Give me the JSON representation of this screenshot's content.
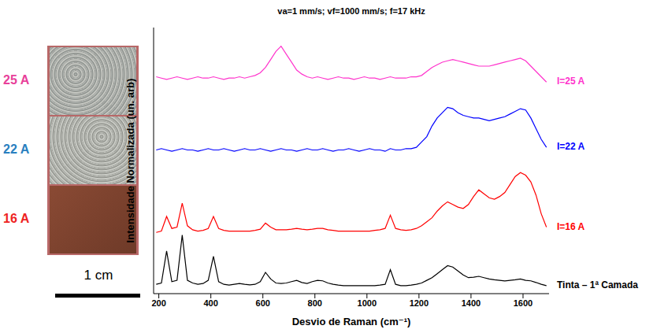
{
  "chart_data": {
    "type": "line",
    "title": "va=1 mm/s; vf=1000 mm/s; f=17 kHz",
    "x_label": "Desvio de Raman (cm⁻¹)",
    "y_label": "Intensidade Normalizada (un. arb)",
    "x": [
      190,
      210,
      230,
      250,
      270,
      290,
      310,
      330,
      350,
      370,
      390,
      410,
      430,
      450,
      470,
      490,
      510,
      530,
      550,
      570,
      590,
      610,
      630,
      650,
      670,
      690,
      710,
      730,
      750,
      770,
      790,
      810,
      830,
      850,
      870,
      890,
      910,
      930,
      950,
      970,
      990,
      1010,
      1030,
      1050,
      1070,
      1090,
      1110,
      1130,
      1150,
      1170,
      1190,
      1210,
      1230,
      1250,
      1270,
      1290,
      1310,
      1330,
      1350,
      1370,
      1390,
      1410,
      1430,
      1450,
      1470,
      1490,
      1510,
      1530,
      1550,
      1570,
      1590,
      1610,
      1630,
      1650,
      1670,
      1690
    ],
    "series": [
      {
        "name": "I=25 A",
        "color": "#ff33cc",
        "values": [
          8.15,
          8.1,
          8.05,
          8.1,
          8.15,
          8.1,
          8.05,
          8.1,
          8.15,
          8.1,
          8.1,
          8.15,
          8.1,
          8.05,
          8.1,
          8.1,
          8.15,
          8.1,
          8.15,
          8.2,
          8.3,
          8.5,
          8.8,
          9.1,
          9.3,
          9.0,
          8.7,
          8.4,
          8.25,
          8.15,
          8.1,
          8.15,
          8.1,
          8.05,
          8.1,
          8.15,
          8.1,
          8.1,
          8.05,
          8.1,
          8.15,
          8.1,
          8.1,
          8.05,
          8.1,
          8.15,
          8.1,
          8.1,
          8.1,
          8.15,
          8.15,
          8.2,
          8.35,
          8.5,
          8.6,
          8.7,
          8.75,
          8.8,
          8.75,
          8.7,
          8.65,
          8.6,
          8.55,
          8.55,
          8.55,
          8.6,
          8.65,
          8.7,
          8.75,
          8.8,
          8.85,
          8.75,
          8.55,
          8.35,
          8.15,
          7.95
        ]
      },
      {
        "name": "I=22 A",
        "color": "#0000ff",
        "values": [
          5.4,
          5.45,
          5.4,
          5.35,
          5.4,
          5.45,
          5.4,
          5.4,
          5.35,
          5.4,
          5.45,
          5.4,
          5.4,
          5.45,
          5.4,
          5.35,
          5.4,
          5.45,
          5.4,
          5.4,
          5.45,
          5.4,
          5.35,
          5.4,
          5.45,
          5.4,
          5.4,
          5.35,
          5.4,
          5.45,
          5.4,
          5.4,
          5.45,
          5.4,
          5.35,
          5.4,
          5.4,
          5.45,
          5.4,
          5.35,
          5.4,
          5.45,
          5.4,
          5.4,
          5.35,
          5.45,
          5.4,
          5.4,
          5.45,
          5.45,
          5.5,
          5.7,
          5.9,
          6.3,
          6.6,
          6.8,
          7.0,
          6.95,
          6.8,
          6.7,
          6.65,
          6.6,
          6.6,
          6.55,
          6.5,
          6.55,
          6.6,
          6.65,
          6.75,
          6.85,
          6.95,
          6.9,
          6.6,
          6.2,
          5.8,
          5.5
        ]
      },
      {
        "name": "I=16 A",
        "color": "#ff0000",
        "values": [
          2.3,
          2.35,
          2.9,
          2.45,
          2.5,
          3.4,
          2.55,
          2.4,
          2.35,
          2.38,
          2.45,
          2.9,
          2.45,
          2.38,
          2.35,
          2.35,
          2.35,
          2.35,
          2.35,
          2.38,
          2.42,
          2.65,
          2.5,
          2.4,
          2.4,
          2.4,
          2.42,
          2.45,
          2.42,
          2.4,
          2.42,
          2.45,
          2.45,
          2.4,
          2.38,
          2.35,
          2.35,
          2.35,
          2.35,
          2.35,
          2.35,
          2.35,
          2.38,
          2.4,
          2.45,
          2.95,
          2.45,
          2.4,
          2.38,
          2.4,
          2.45,
          2.55,
          2.7,
          2.85,
          3.1,
          3.3,
          3.45,
          3.35,
          3.25,
          3.2,
          3.35,
          3.65,
          3.9,
          3.75,
          3.6,
          3.55,
          3.65,
          3.8,
          4.1,
          4.4,
          4.55,
          4.45,
          4.2,
          3.7,
          3.0,
          2.5
        ]
      },
      {
        "name": "Tinta – 1ª Camada",
        "color": "#000000",
        "values": [
          0.35,
          0.4,
          1.6,
          0.45,
          0.5,
          2.2,
          0.5,
          0.4,
          0.35,
          0.38,
          0.5,
          1.4,
          0.45,
          0.35,
          0.32,
          0.35,
          0.38,
          0.35,
          0.33,
          0.35,
          0.45,
          0.8,
          0.55,
          0.4,
          0.38,
          0.4,
          0.45,
          0.5,
          0.42,
          0.38,
          0.45,
          0.5,
          0.48,
          0.4,
          0.35,
          0.32,
          0.3,
          0.3,
          0.3,
          0.3,
          0.3,
          0.3,
          0.3,
          0.32,
          0.35,
          0.9,
          0.35,
          0.3,
          0.3,
          0.32,
          0.35,
          0.4,
          0.5,
          0.6,
          0.75,
          0.9,
          1.05,
          1.0,
          0.85,
          0.7,
          0.6,
          0.62,
          0.65,
          0.6,
          0.55,
          0.52,
          0.5,
          0.48,
          0.5,
          0.52,
          0.55,
          0.5,
          0.48,
          0.42,
          0.35,
          0.3
        ]
      }
    ],
    "xlim": [
      180,
      1700
    ],
    "xticks": [
      200,
      400,
      600,
      800,
      1000,
      1200,
      1400,
      1600
    ],
    "ylim": [
      0,
      10
    ],
    "tick_labels": "x",
    "grid": false
  },
  "photo": {
    "labels": [
      {
        "text": "25 A",
        "color": "#e8409a"
      },
      {
        "text": "22 A",
        "color": "#2a7fc0"
      },
      {
        "text": "16 A",
        "color": "#ee2222"
      }
    ],
    "scale_bar": "1 cm"
  }
}
